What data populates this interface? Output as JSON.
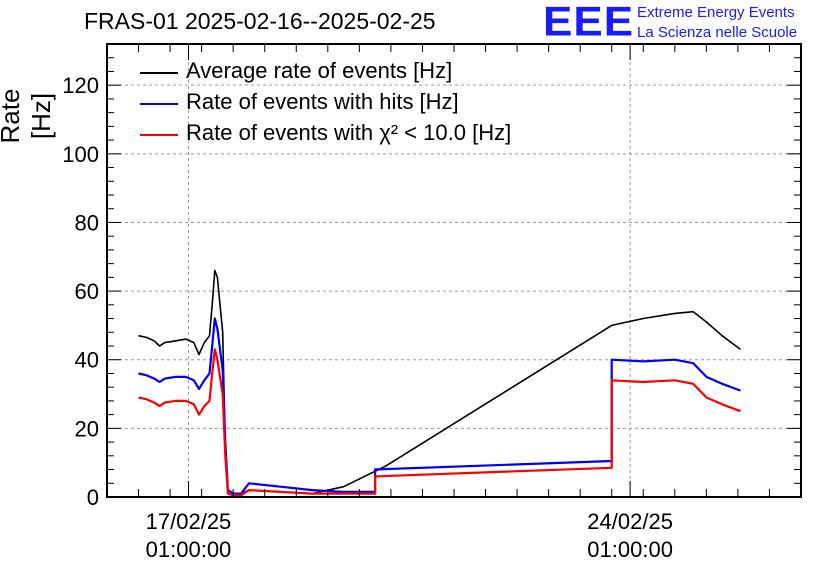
{
  "title": "FRAS-01 2025-02-16--2025-02-25",
  "logo": {
    "mark": "EEE",
    "line1": "Extreme Energy Events",
    "line2": "La Scienza nelle Scuole",
    "color": "#1a1aff"
  },
  "chart_data": {
    "type": "line",
    "ylabel": "Rate [Hz]",
    "ylim": [
      0,
      132
    ],
    "yticks": [
      0,
      20,
      40,
      60,
      80,
      100,
      120
    ],
    "xlim": [
      "2025-02-15 18:00",
      "2025-02-26 18:00"
    ],
    "xticks": [
      {
        "x": "2025-02-17 01:00",
        "date": "17/02/25",
        "time": "01:00:00"
      },
      {
        "x": "2025-02-24 01:00",
        "date": "24/02/25",
        "time": "01:00:00"
      }
    ],
    "grid": true,
    "legend_position": "top-left",
    "series": [
      {
        "name": "Average rate of events [Hz]",
        "color": "#000000",
        "points": [
          [
            "2025-02-16 06:00",
            47
          ],
          [
            "2025-02-16 09:00",
            46.5
          ],
          [
            "2025-02-16 12:00",
            45.5
          ],
          [
            "2025-02-16 14:00",
            44
          ],
          [
            "2025-02-16 16:00",
            45
          ],
          [
            "2025-02-16 20:00",
            45.5
          ],
          [
            "2025-02-17 00:00",
            46
          ],
          [
            "2025-02-17 03:00",
            45
          ],
          [
            "2025-02-17 05:00",
            41.5
          ],
          [
            "2025-02-17 07:00",
            45
          ],
          [
            "2025-02-17 09:00",
            47
          ],
          [
            "2025-02-17 10:00",
            56
          ],
          [
            "2025-02-17 11:00",
            66
          ],
          [
            "2025-02-17 12:00",
            64
          ],
          [
            "2025-02-17 13:00",
            56
          ],
          [
            "2025-02-17 14:00",
            48
          ],
          [
            "2025-02-17 15:00",
            14
          ],
          [
            "2025-02-17 16:00",
            2
          ],
          [
            "2025-02-17 18:00",
            1
          ],
          [
            "2025-02-17 21:00",
            1
          ],
          [
            "2025-02-18 00:00",
            2
          ],
          [
            "2025-02-18 12:00",
            1.5
          ],
          [
            "2025-02-19 00:00",
            1
          ],
          [
            "2025-02-19 12:00",
            3
          ],
          [
            "2025-02-20 04:00",
            9
          ],
          [
            "2025-02-23 18:00",
            50
          ],
          [
            "2025-02-24 06:00",
            52
          ],
          [
            "2025-02-24 18:00",
            53.5
          ],
          [
            "2025-02-25 01:00",
            54
          ],
          [
            "2025-02-25 06:00",
            51
          ],
          [
            "2025-02-25 12:00",
            47
          ],
          [
            "2025-02-25 19:00",
            43
          ]
        ]
      },
      {
        "name": "Rate of events with hits [Hz]",
        "color": "#0000ff",
        "points": [
          [
            "2025-02-16 06:00",
            36
          ],
          [
            "2025-02-16 09:00",
            35.5
          ],
          [
            "2025-02-16 12:00",
            34.5
          ],
          [
            "2025-02-16 14:00",
            33.5
          ],
          [
            "2025-02-16 16:00",
            34.5
          ],
          [
            "2025-02-16 20:00",
            35
          ],
          [
            "2025-02-17 00:00",
            35
          ],
          [
            "2025-02-17 03:00",
            34
          ],
          [
            "2025-02-17 05:00",
            31.5
          ],
          [
            "2025-02-17 07:00",
            34
          ],
          [
            "2025-02-17 09:00",
            36
          ],
          [
            "2025-02-17 10:00",
            44
          ],
          [
            "2025-02-17 11:00",
            52
          ],
          [
            "2025-02-17 12:00",
            49
          ],
          [
            "2025-02-17 13:00",
            43
          ],
          [
            "2025-02-17 14:00",
            37
          ],
          [
            "2025-02-17 15:00",
            16
          ],
          [
            "2025-02-17 16:00",
            2
          ],
          [
            "2025-02-17 18:00",
            1
          ],
          [
            "2025-02-17 21:00",
            1
          ],
          [
            "2025-02-18 00:00",
            4
          ],
          [
            "2025-02-18 12:00",
            3
          ],
          [
            "2025-02-19 00:00",
            2
          ],
          [
            "2025-02-19 12:00",
            1.5
          ],
          [
            "2025-02-20 00:00",
            1.5
          ],
          [
            "2025-02-20 00:00",
            8
          ],
          [
            "2025-02-23 18:00",
            10.5
          ],
          [
            "2025-02-23 18:00",
            40
          ],
          [
            "2025-02-24 06:00",
            39.5
          ],
          [
            "2025-02-24 18:00",
            40
          ],
          [
            "2025-02-25 01:00",
            39
          ],
          [
            "2025-02-25 06:00",
            35
          ],
          [
            "2025-02-25 12:00",
            33
          ],
          [
            "2025-02-25 19:00",
            31
          ]
        ]
      },
      {
        "name": "Rate of events with χ² < 10.0 [Hz]",
        "color": "#ff0000",
        "points": [
          [
            "2025-02-16 06:00",
            29
          ],
          [
            "2025-02-16 09:00",
            28.5
          ],
          [
            "2025-02-16 12:00",
            27.5
          ],
          [
            "2025-02-16 14:00",
            26.5
          ],
          [
            "2025-02-16 16:00",
            27.5
          ],
          [
            "2025-02-16 20:00",
            28
          ],
          [
            "2025-02-17 00:00",
            28
          ],
          [
            "2025-02-17 03:00",
            27
          ],
          [
            "2025-02-17 05:00",
            24
          ],
          [
            "2025-02-17 07:00",
            26.5
          ],
          [
            "2025-02-17 09:00",
            28
          ],
          [
            "2025-02-17 10:00",
            36
          ],
          [
            "2025-02-17 11:00",
            43
          ],
          [
            "2025-02-17 12:00",
            40
          ],
          [
            "2025-02-17 13:00",
            35
          ],
          [
            "2025-02-17 14:00",
            30
          ],
          [
            "2025-02-17 15:00",
            12
          ],
          [
            "2025-02-17 16:00",
            1
          ],
          [
            "2025-02-17 18:00",
            0.5
          ],
          [
            "2025-02-17 21:00",
            0.5
          ],
          [
            "2025-02-18 00:00",
            2
          ],
          [
            "2025-02-18 12:00",
            1.5
          ],
          [
            "2025-02-19 00:00",
            1
          ],
          [
            "2025-02-19 12:00",
            1
          ],
          [
            "2025-02-20 00:00",
            1
          ],
          [
            "2025-02-20 00:00",
            6
          ],
          [
            "2025-02-23 18:00",
            8.5
          ],
          [
            "2025-02-23 18:00",
            34
          ],
          [
            "2025-02-24 06:00",
            33.5
          ],
          [
            "2025-02-24 18:00",
            34
          ],
          [
            "2025-02-25 01:00",
            33
          ],
          [
            "2025-02-25 06:00",
            29
          ],
          [
            "2025-02-25 12:00",
            27
          ],
          [
            "2025-02-25 19:00",
            25
          ]
        ]
      }
    ]
  }
}
